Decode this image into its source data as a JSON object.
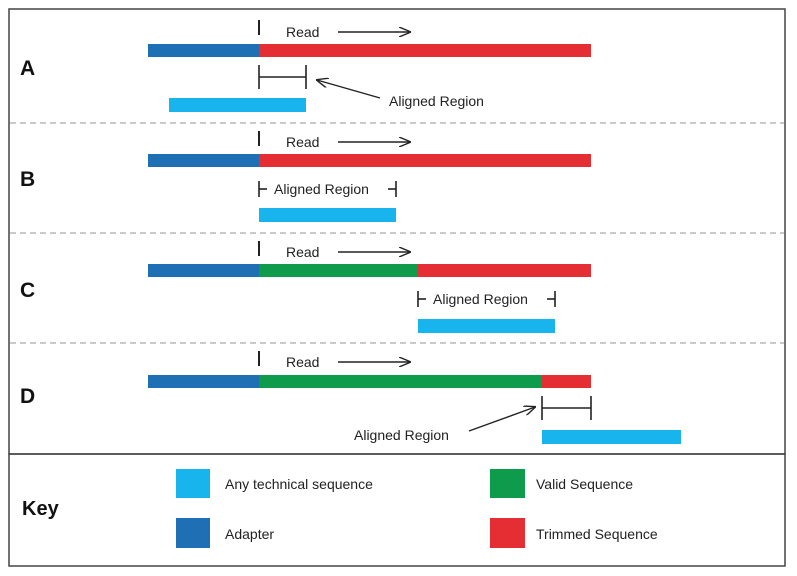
{
  "colors": {
    "technical": "#18b4ee",
    "adapter": "#1f6fb5",
    "valid": "#0e9b4c",
    "trimmed": "#e52e34",
    "border": "#444444",
    "divider": "#aaaaaa"
  },
  "panels": [
    {
      "letter": "A",
      "read_label": "Read",
      "aligned_label": "Aligned Region"
    },
    {
      "letter": "B",
      "read_label": "Read",
      "aligned_label": "Aligned Region"
    },
    {
      "letter": "C",
      "read_label": "Read",
      "aligned_label": "Aligned Region"
    },
    {
      "letter": "D",
      "read_label": "Read",
      "aligned_label": "Aligned Region"
    }
  ],
  "key": {
    "title": "Key",
    "items": [
      {
        "label": "Any technical sequence",
        "color_key": "technical",
        "icon": "technical-sequence-swatch"
      },
      {
        "label": "Adapter",
        "color_key": "adapter",
        "icon": "adapter-swatch"
      },
      {
        "label": "Valid Sequence",
        "color_key": "valid",
        "icon": "valid-sequence-swatch"
      },
      {
        "label": "Trimmed Sequence",
        "color_key": "trimmed",
        "icon": "trimmed-sequence-swatch"
      }
    ]
  }
}
